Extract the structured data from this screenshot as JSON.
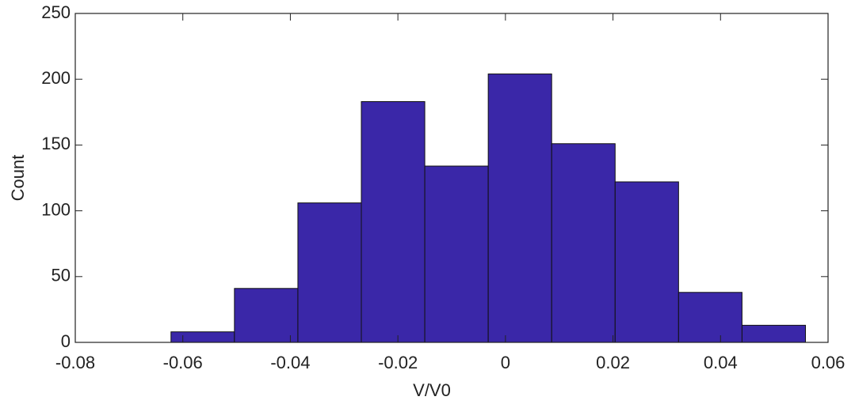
{
  "chart_data": {
    "type": "histogram",
    "bins": [
      -0.0622,
      -0.0504,
      -0.0386,
      -0.0268,
      -0.015,
      -0.0032,
      0.0086,
      0.0204,
      0.0322,
      0.044,
      0.0558
    ],
    "values": [
      8,
      41,
      106,
      183,
      134,
      204,
      151,
      122,
      38,
      13
    ],
    "color": "#3a27a8",
    "xlabel": "V/V0",
    "ylabel": "Count",
    "xlim": [
      -0.08,
      0.06
    ],
    "xticks": [
      -0.08,
      -0.06,
      -0.04,
      -0.02,
      0,
      0.02,
      0.04,
      0.06
    ],
    "ylim": [
      0,
      250
    ],
    "yticks": [
      0,
      50,
      100,
      150,
      200,
      250
    ]
  }
}
